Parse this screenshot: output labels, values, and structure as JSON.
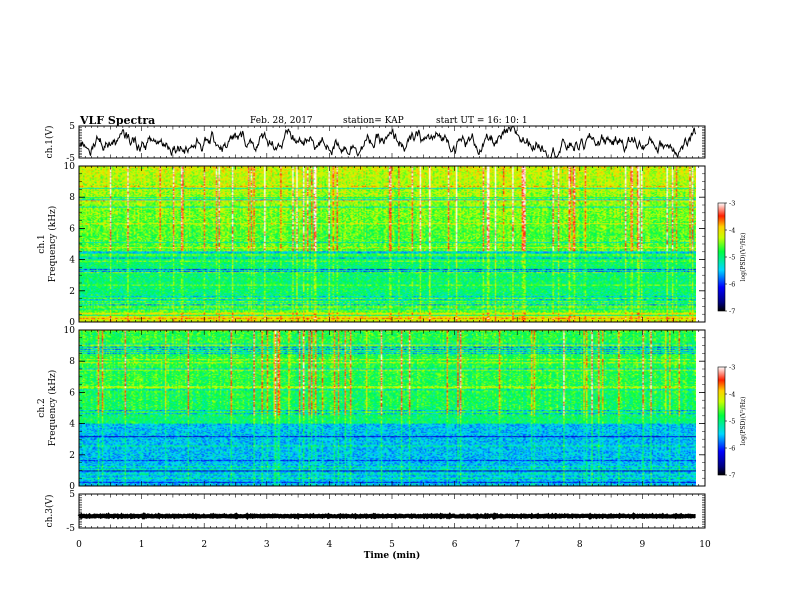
{
  "header": {
    "title": "VLF Spectra",
    "date": "Feb. 28, 2017",
    "station": "station= KAP",
    "start_time": "start  UT =   16: 10: 1"
  },
  "chart_data": [
    {
      "type": "line",
      "name": "ch1-waveform",
      "ylabel": "ch.1(V)",
      "ylim": [
        -5,
        5
      ],
      "yticks": [
        "5",
        "-5"
      ],
      "xlim": [
        0,
        10
      ],
      "description_free": true,
      "signal": {
        "mean": 0,
        "amplitude": 2.2,
        "x_end": 9.85
      }
    },
    {
      "type": "heatmap",
      "name": "ch1-spectrogram",
      "ylabel": "ch.1\nFrequency  (kHz)",
      "ylim": [
        0,
        10
      ],
      "yticks": [
        "0",
        "2",
        "4",
        "6",
        "8",
        "10"
      ],
      "xlim": [
        0,
        10
      ],
      "x_end": 9.85,
      "colorbar": {
        "label": "log(PSD)(V²/Hz)",
        "range": [
          -7,
          -3
        ],
        "ticks": [
          "-3",
          "-4",
          "-5",
          "-6",
          "-7"
        ]
      }
    },
    {
      "type": "heatmap",
      "name": "ch2-spectrogram",
      "ylabel": "ch.2\nFrequency  (kHz)",
      "ylim": [
        0,
        10
      ],
      "yticks": [
        "0",
        "2",
        "4",
        "6",
        "8",
        "10"
      ],
      "xlim": [
        0,
        10
      ],
      "x_end": 9.85,
      "colorbar": {
        "label": "log(PSD)(V²/Hz)",
        "range": [
          -7,
          -3
        ],
        "ticks": [
          "-3",
          "-4",
          "-5",
          "-6",
          "-7"
        ]
      }
    },
    {
      "type": "line",
      "name": "ch3-waveform",
      "ylabel": "ch.3(V)",
      "ylim": [
        -5,
        5
      ],
      "yticks": [
        "5",
        "-5"
      ],
      "xlim": [
        0,
        10
      ],
      "signal": {
        "mean": -1.5,
        "amplitude": 0.3,
        "x_end": 9.85
      }
    }
  ],
  "xaxis": {
    "label": "Time  (min)",
    "ticks": [
      "0",
      "1",
      "2",
      "3",
      "4",
      "5",
      "6",
      "7",
      "8",
      "9",
      "10"
    ]
  }
}
